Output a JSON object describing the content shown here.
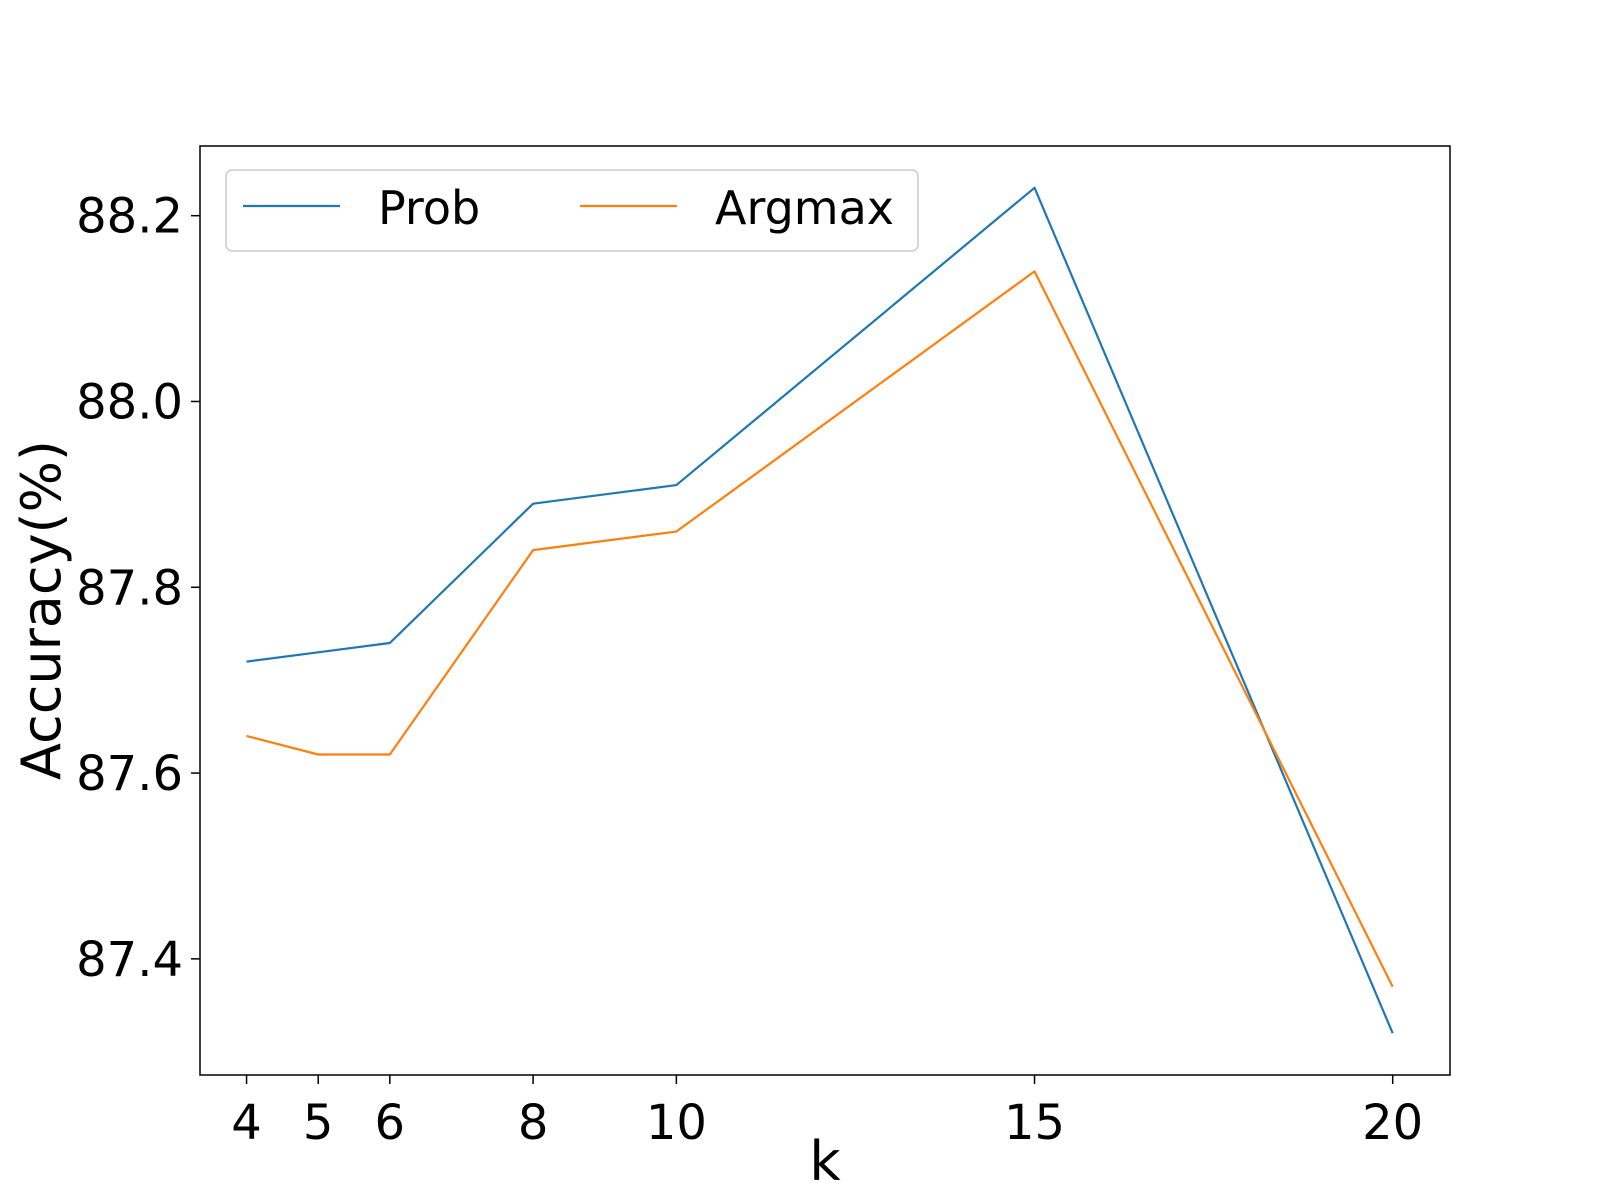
{
  "chart_data": {
    "type": "line",
    "title": "",
    "xlabel": "k",
    "ylabel": "Accuracy(%)",
    "x": [
      4,
      5,
      6,
      8,
      10,
      15,
      20
    ],
    "x_tick_labels": [
      "4",
      "5",
      "6",
      "8",
      "10",
      "15",
      "20"
    ],
    "y_ticks": [
      87.4,
      87.6,
      87.8,
      88.0,
      88.2
    ],
    "y_tick_labels": [
      "87.4",
      "87.6",
      "87.8",
      "88.0",
      "88.2"
    ],
    "xlim": [
      3.35,
      20.8
    ],
    "ylim": [
      87.275,
      88.275
    ],
    "grid": false,
    "legend_position": "top-left",
    "series": [
      {
        "name": "Prob",
        "color": "#1f77b4",
        "values": [
          87.72,
          87.73,
          87.74,
          87.89,
          87.91,
          88.23,
          87.32
        ]
      },
      {
        "name": "Argmax",
        "color": "#ff7f0e",
        "values": [
          87.64,
          87.62,
          87.62,
          87.84,
          87.86,
          88.14,
          87.37
        ]
      }
    ]
  }
}
